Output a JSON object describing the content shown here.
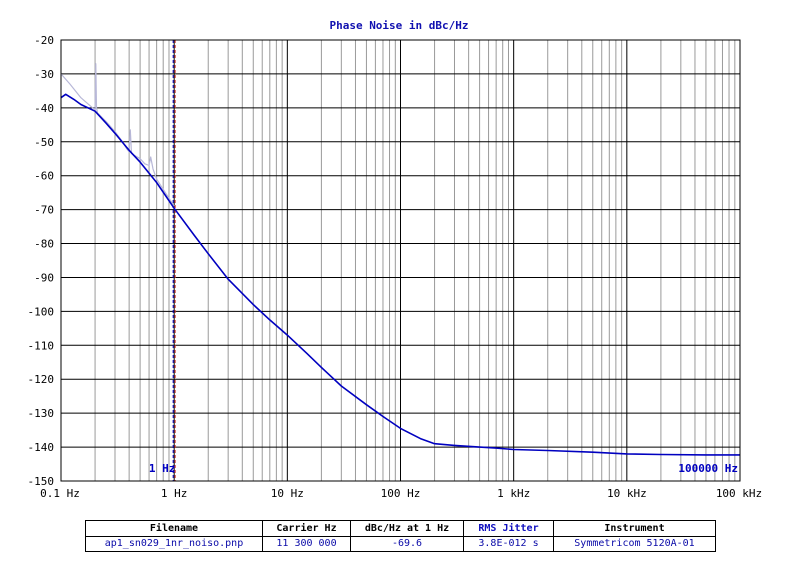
{
  "chart_data": {
    "type": "line",
    "title": "Phase Noise in dBc/Hz",
    "xscale": "log",
    "xlim": [
      0.1,
      100000
    ],
    "ylim": [
      -150,
      -20
    ],
    "x_tick_labels": [
      "0.1 Hz",
      "1 Hz",
      "10 Hz",
      "100 Hz",
      "1 kHz",
      "10 kHz",
      "100 kHz"
    ],
    "y_tick_labels": [
      "-20",
      "-30",
      "-40",
      "-50",
      "-60",
      "-70",
      "-80",
      "-90",
      "-100",
      "-110",
      "-120",
      "-130",
      "-140",
      "-150"
    ],
    "markers": [
      {
        "label": "1 Hz",
        "x": 1
      },
      {
        "label": "100000 Hz",
        "x": 100000
      }
    ],
    "grid": true,
    "series": [
      {
        "role": "smoothed",
        "color": "#0000c0",
        "x": [
          0.1,
          0.11,
          0.13,
          0.15,
          0.2,
          0.25,
          0.3,
          0.4,
          0.5,
          0.7,
          1,
          1.5,
          2,
          3,
          5,
          7,
          10,
          15,
          20,
          30,
          50,
          70,
          100,
          150,
          200,
          300,
          500,
          700,
          1000,
          2000,
          5000,
          10000,
          20000,
          50000,
          100000
        ],
        "y": [
          -37,
          -36,
          -37.5,
          -39,
          -41,
          -44.5,
          -47.5,
          -52.5,
          -56,
          -62,
          -69.6,
          -77.5,
          -83,
          -90.5,
          -98,
          -102.5,
          -107,
          -112.5,
          -116.5,
          -122,
          -127.5,
          -131,
          -134.5,
          -137.5,
          -139,
          -139.5,
          -140,
          -140.3,
          -140.7,
          -141,
          -141.5,
          -142,
          -142.2,
          -142.3,
          -142.3
        ]
      },
      {
        "role": "raw",
        "color": "#b8b8d8",
        "x": [
          0.1,
          0.12,
          0.15,
          0.19,
          0.2,
          0.203,
          0.206,
          0.21,
          0.25,
          0.3,
          0.35,
          0.38,
          0.4,
          0.41,
          0.42,
          0.5,
          0.55,
          0.6,
          0.62,
          0.65,
          0.7,
          0.8,
          1
        ],
        "y": [
          -30,
          -33,
          -37,
          -40,
          -40.5,
          -27,
          -40,
          -41.5,
          -44,
          -47,
          -50,
          -52,
          -53,
          -46.5,
          -53.5,
          -55,
          -56.5,
          -57,
          -54.5,
          -58,
          -61,
          -64,
          -69
        ]
      }
    ]
  },
  "info_table": {
    "headers": {
      "filename": "Filename",
      "carrier": "Carrier Hz",
      "dbc": "dBc/Hz at 1 Hz",
      "jitter": "RMS Jitter",
      "instrument": "Instrument"
    },
    "values": {
      "filename": "ap1_sn029_1nr_noiso.pnp",
      "carrier": "11 300 000",
      "dbc": "-69.6",
      "jitter": "3.8E-012 s",
      "instrument": "Symmetricom 5120A-01"
    }
  }
}
